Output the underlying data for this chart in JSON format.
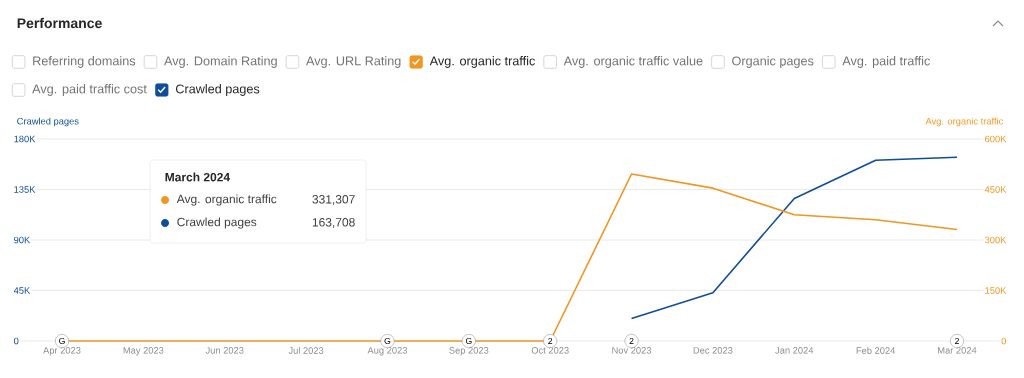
{
  "chart_data": {
    "type": "line",
    "title": "Performance",
    "ylabel": "Crawled pages",
    "y2label": "Avg. organic traffic",
    "categories": [
      "Apr 2023",
      "May 2023",
      "Jun 2023",
      "Jul 2023",
      "Aug 2023",
      "Sep 2023",
      "Oct 2023",
      "Nov 2023",
      "Dec 2023",
      "Jan 2024",
      "Feb 2024",
      "Mar 2024"
    ],
    "series": [
      {
        "name": "Avg. organic traffic",
        "color": "#f3951f",
        "axis": "y2",
        "values": [
          0,
          0,
          0,
          0,
          0,
          0,
          0,
          496000,
          454000,
          375000,
          360000,
          331307
        ]
      },
      {
        "name": "Crawled pages",
        "color": "#104c9c",
        "values": [
          null,
          null,
          null,
          null,
          null,
          null,
          null,
          20000,
          43000,
          127000,
          161000,
          163708
        ]
      }
    ],
    "ylim": [
      0,
      180000
    ],
    "yticks": [
      0,
      {
        "value": 45000,
        "label": "45K"
      },
      {
        "value": 90000,
        "label": "90K"
      },
      {
        "value": 135000,
        "label": "135K"
      },
      {
        "value": 180000,
        "label": "180K"
      }
    ],
    "y2lim": [
      0,
      600000
    ],
    "y2ticks": [
      0,
      {
        "value": 150000,
        "label": "150K"
      },
      {
        "value": 300000,
        "label": "300K"
      },
      {
        "value": 450000,
        "label": "450K"
      },
      {
        "value": 600000,
        "label": "600K"
      }
    ],
    "grid": "y",
    "legend": "top",
    "annotations": [
      "Referring domains",
      "Avg. Domain Rating",
      "Avg. URL Rating",
      "Avg. organic traffic value",
      "Organic pages",
      "Avg. paid traffic",
      "Avg. paid traffic cost",
      "March 2024",
      "331,307",
      "163,708",
      {
        "text": "G",
        "x": "Apr 2023"
      },
      {
        "text": "G",
        "x": "Aug 2023"
      },
      {
        "text": "G",
        "x": "Sep 2023"
      },
      {
        "text": "2",
        "x": "Oct 2023"
      },
      {
        "text": "2",
        "x": "Nov 2023"
      },
      {
        "text": "2",
        "x": "Mar 2024"
      }
    ]
  }
}
